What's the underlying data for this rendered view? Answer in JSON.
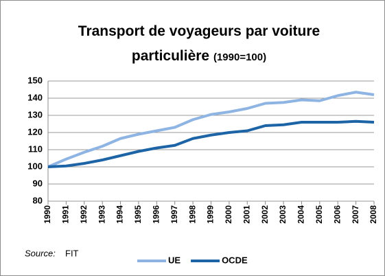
{
  "chart_data": {
    "type": "line",
    "title": "Transport de voyageurs par voiture particulière",
    "subtitle": "(1990=100)",
    "source_label": "Source:",
    "source": "FIT",
    "categories": [
      "1990",
      "1991",
      "1992",
      "1993",
      "1994",
      "1995",
      "1996",
      "1997",
      "1998",
      "1999",
      "2000",
      "2001",
      "2002",
      "2003",
      "2004",
      "2005",
      "2006",
      "2007",
      "2008"
    ],
    "series": [
      {
        "name": "UE",
        "color": "#8eb4e3",
        "values": [
          100,
          104.5,
          108.5,
          112,
          116.5,
          119,
          121,
          123,
          127.5,
          130.5,
          132,
          134,
          137,
          137.5,
          139,
          138.5,
          141.5,
          143.5,
          142
        ]
      },
      {
        "name": "OCDE",
        "color": "#1c64a6",
        "values": [
          100,
          100.5,
          102,
          104,
          106.5,
          109,
          111,
          112.5,
          116.5,
          118.5,
          120,
          121,
          124,
          124.5,
          126,
          126,
          126,
          126.5,
          126
        ]
      }
    ],
    "ylim": [
      80,
      150
    ],
    "yticks": [
      80,
      90,
      100,
      110,
      120,
      130,
      140,
      150
    ],
    "grid": true,
    "legend": "bottom"
  }
}
